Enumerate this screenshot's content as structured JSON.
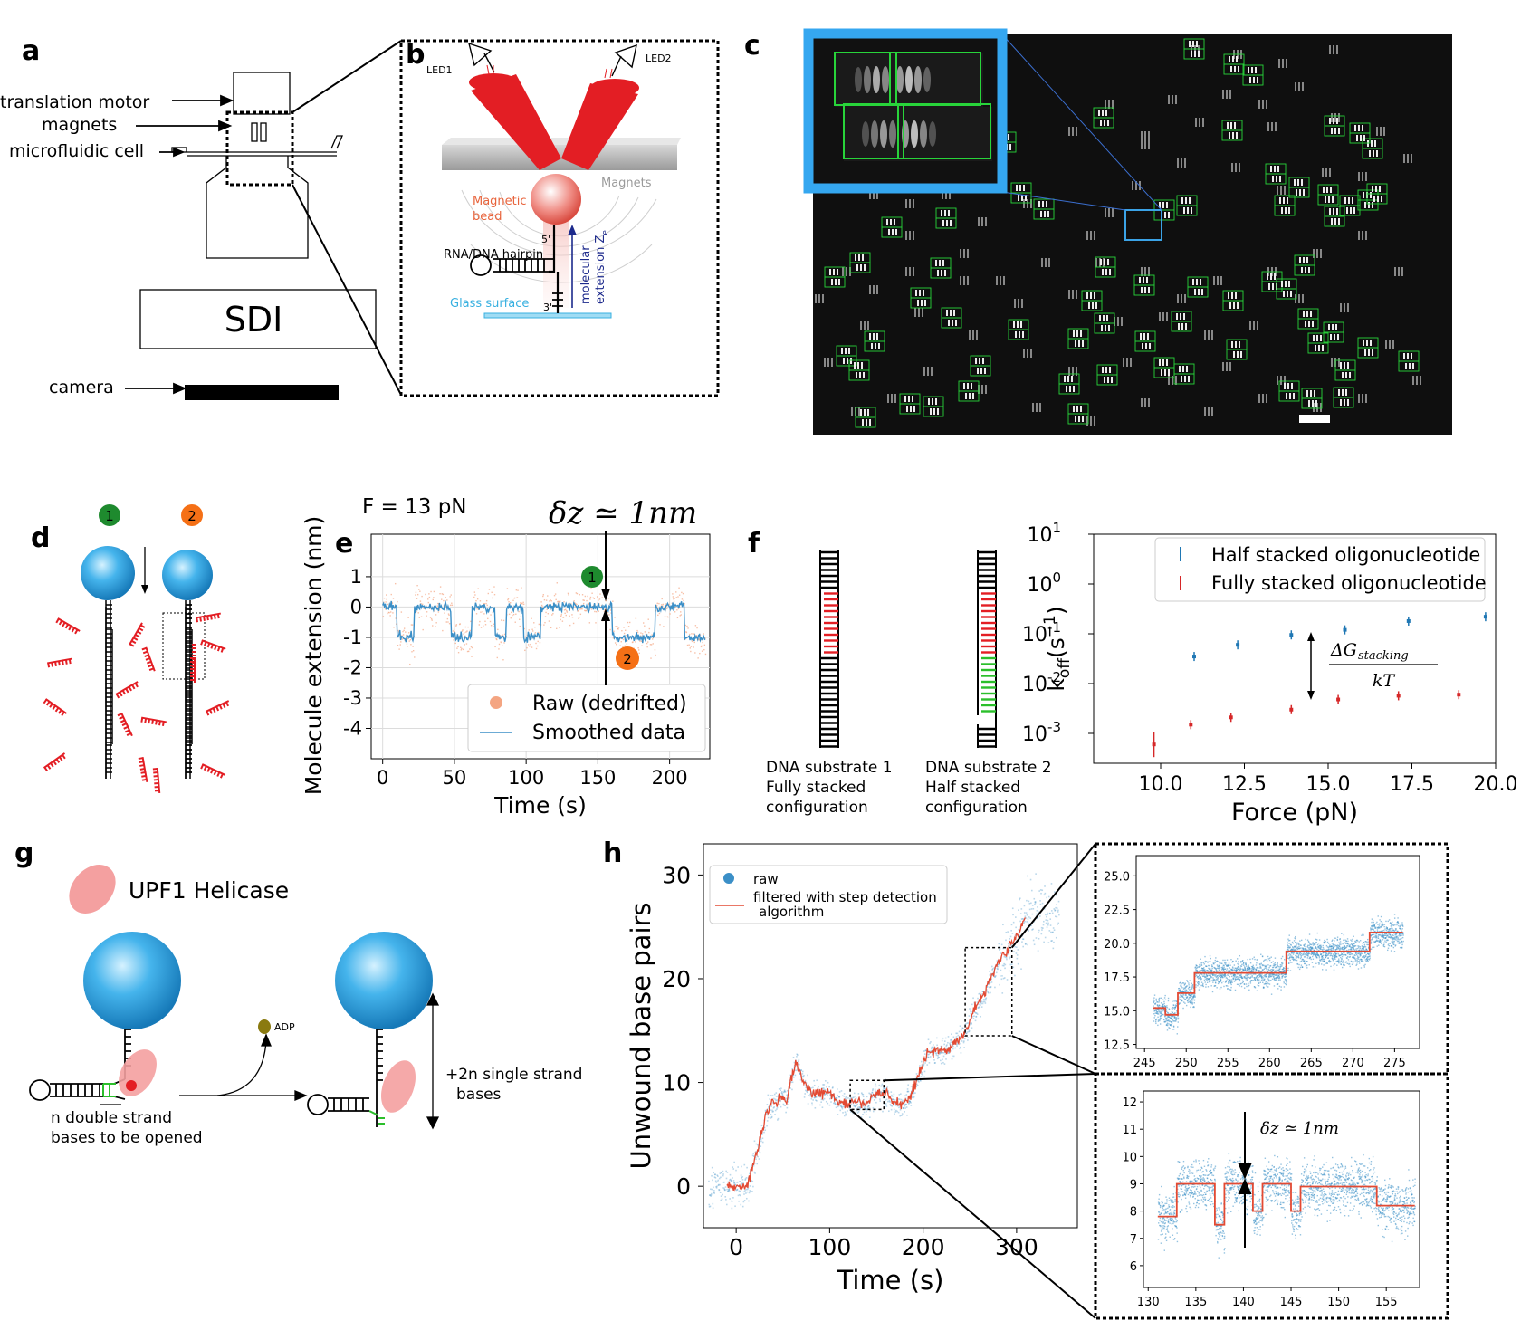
{
  "panel_letters": {
    "a": "a",
    "b": "b",
    "c": "c",
    "d": "d",
    "e": "e",
    "f": "f",
    "g": "g",
    "h": "h"
  },
  "panel_a": {
    "labels": {
      "motor": "translation motor",
      "magnets": "magnets",
      "cell": "microfluidic cell",
      "camera": "camera"
    },
    "sdi": "SDI"
  },
  "panel_b": {
    "led1": "LED1",
    "led2": "LED2",
    "magnets": "Magnets",
    "bead_line1": "Magnetic",
    "bead_line2": "bead",
    "hairpin": "RNA/DNA hairpin",
    "glass": "Glass surface",
    "five_prime": "5'",
    "three_prime": "3'",
    "extension_line1": "molecular",
    "extension_line2": "extension Z",
    "extension_sub": "e"
  },
  "panel_d": {
    "badge1": "1",
    "badge2": "2"
  },
  "panel_e": {
    "force_label": "F = 13 pN",
    "delta_z": "δz ≃ 1nm",
    "badge1": "1",
    "badge2": "2",
    "legend": [
      "Raw (dedrifted)",
      "Smoothed data"
    ],
    "colors": {
      "raw": "#f4a582",
      "smooth": "#3b8fc7"
    }
  },
  "panel_f_diagram": {
    "substrate1": [
      "DNA substrate 1",
      "Fully stacked",
      "configuration"
    ],
    "substrate2": [
      "DNA substrate 2",
      "Half stacked",
      "configuration"
    ]
  },
  "panel_g": {
    "helicase": "UPF1 Helicase",
    "adp": "ADP",
    "n_bases": [
      "n double strand",
      "bases to be opened"
    ],
    "plus2n": [
      "+2n single strand",
      "bases"
    ]
  },
  "panel_h": {
    "legend": [
      "raw",
      "filtered with step detection",
      "algorithm"
    ],
    "inset_delta_z": "δz ≃ 1nm"
  },
  "chart_data": [
    {
      "id": "e",
      "type": "line",
      "xlabel": "Time (s)",
      "ylabel": "Molecule extension (nm)",
      "xlim": [
        -8,
        228
      ],
      "ylim": [
        -5,
        2.4
      ],
      "xticks": [
        0,
        50,
        100,
        150,
        200
      ],
      "yticks": [
        1,
        0,
        -1,
        -2,
        -3,
        -4
      ],
      "grid": true,
      "series": [
        {
          "name": "Smoothed data",
          "x": [
            0,
            8,
            10,
            18,
            22,
            32,
            48,
            52,
            62,
            74,
            78,
            82,
            86,
            94,
            98,
            108,
            110,
            118,
            122,
            140,
            152,
            158,
            160,
            170,
            175,
            186,
            190,
            205,
            210,
            225
          ],
          "values": [
            0,
            0,
            -1,
            -1,
            0,
            0,
            -1,
            -1,
            0,
            0,
            -1,
            -1,
            0,
            0,
            -1,
            -1,
            0,
            0,
            0,
            0,
            0,
            0,
            -1,
            -1,
            -1,
            -1,
            0,
            0,
            -1,
            -1
          ]
        }
      ]
    },
    {
      "id": "f",
      "type": "scatter",
      "xlabel": "Force (pN)",
      "ylabel": "k_off(s^-1)",
      "xlim": [
        8,
        20
      ],
      "ylim_log10": [
        -3.6,
        1
      ],
      "xticks": [
        10.0,
        12.5,
        15.0,
        17.5,
        20.0
      ],
      "yticks_log": [
        "10^1",
        "10^0",
        "10^-1",
        "10^-2",
        "10^-3"
      ],
      "legend_position": "top-right",
      "annotation": "ΔG_stacking / kT",
      "series": [
        {
          "name": "Half stacked oligonucleotide",
          "color": "#1f77b4",
          "x": [
            11.0,
            12.3,
            13.9,
            15.5,
            17.4,
            19.7
          ],
          "values": [
            0.035,
            0.06,
            0.095,
            0.12,
            0.18,
            0.22
          ]
        },
        {
          "name": "Fully stacked oligonucleotide",
          "color": "#d62728",
          "x": [
            9.8,
            10.9,
            12.1,
            13.9,
            15.3,
            17.1,
            18.9
          ],
          "values": [
            0.0006,
            0.0015,
            0.0021,
            0.003,
            0.0048,
            0.0057,
            0.006
          ]
        }
      ]
    },
    {
      "id": "h-main",
      "type": "line",
      "xlabel": "Time (s)",
      "ylabel": "Unwound base pairs",
      "xlim": [
        -35,
        365
      ],
      "ylim": [
        -4,
        33
      ],
      "xticks": [
        0,
        100,
        200,
        300
      ],
      "yticks": [
        0,
        10,
        20,
        30
      ],
      "series": [
        {
          "name": "filtered with step detection algorithm",
          "color": "#e34a33",
          "x": [
            -10,
            12,
            18,
            24,
            32,
            38,
            44,
            48,
            54,
            58,
            64,
            72,
            80,
            90,
            100,
            110,
            120,
            130,
            140,
            150,
            160,
            170,
            180,
            188,
            196,
            205,
            215,
            225,
            236,
            246,
            254,
            262,
            272,
            282,
            292,
            300,
            310
          ],
          "values": [
            0,
            0,
            2,
            4,
            7,
            8,
            8,
            9,
            8,
            10,
            12,
            10,
            9,
            9,
            9,
            8,
            8,
            8,
            8,
            9,
            9,
            8,
            8,
            9,
            11,
            13,
            13,
            13,
            14,
            15,
            17,
            18,
            20,
            22,
            23,
            24,
            26
          ]
        }
      ]
    },
    {
      "id": "h-inset-top",
      "type": "line",
      "xlim": [
        244,
        278
      ],
      "ylim": [
        12.2,
        26.5
      ],
      "xticks": [
        245,
        250,
        255,
        260,
        265,
        270,
        275
      ],
      "yticks": [
        12.5,
        15.0,
        17.5,
        20.0,
        22.5,
        25.0
      ],
      "series": [
        {
          "name": "steps",
          "color": "#e34a33",
          "x": [
            246,
            247.5,
            247.5,
            249,
            249,
            251,
            251,
            262,
            262,
            272,
            272,
            276
          ],
          "values": [
            15.2,
            15.2,
            14.7,
            14.7,
            16.3,
            16.3,
            17.8,
            17.8,
            19.4,
            19.4,
            20.8,
            20.8
          ]
        }
      ]
    },
    {
      "id": "h-inset-bottom",
      "type": "line",
      "xlim": [
        129.5,
        158.5
      ],
      "ylim": [
        5.2,
        12.4
      ],
      "xticks": [
        130,
        135,
        140,
        145,
        150,
        155
      ],
      "yticks": [
        12,
        11,
        10,
        9,
        8,
        7,
        6
      ],
      "series": [
        {
          "name": "steps",
          "color": "#e34a33",
          "x": [
            131,
            133,
            133,
            137,
            137,
            138,
            138,
            141,
            141,
            142,
            142,
            145,
            145,
            146,
            146,
            154,
            154,
            158
          ],
          "values": [
            7.8,
            7.8,
            9,
            9,
            7.5,
            7.5,
            9,
            9,
            8,
            8,
            9,
            9,
            8,
            8,
            8.9,
            8.9,
            8.2,
            8.2
          ]
        }
      ]
    }
  ]
}
